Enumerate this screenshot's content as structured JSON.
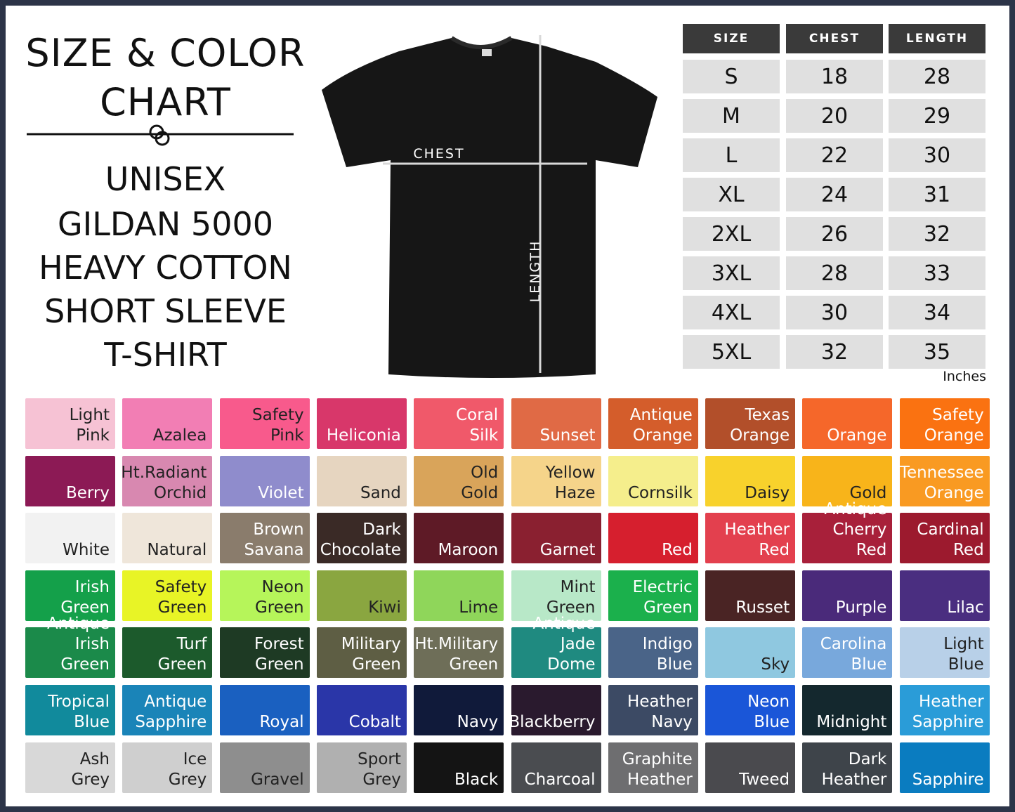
{
  "title": {
    "lines": [
      "SIZE & COLOR",
      "CHART"
    ]
  },
  "subtitle": {
    "lines": [
      "UNISEX",
      "GILDAN 5000",
      "HEAVY COTTON",
      "SHORT SLEEVE",
      "T-SHIRT"
    ]
  },
  "shirt": {
    "chest_label": "CHEST",
    "length_label": "LENGTH"
  },
  "table": {
    "header": [
      "SIZE",
      "CHEST",
      "LENGTH"
    ],
    "rows": [
      [
        "S",
        "18",
        "28"
      ],
      [
        "M",
        "20",
        "29"
      ],
      [
        "L",
        "22",
        "30"
      ],
      [
        "XL",
        "24",
        "31"
      ],
      [
        "2XL",
        "26",
        "32"
      ],
      [
        "3XL",
        "28",
        "33"
      ],
      [
        "4XL",
        "30",
        "34"
      ],
      [
        "5XL",
        "32",
        "35"
      ]
    ],
    "unit": "Inches"
  },
  "swatches": [
    {
      "name": "Light\nPink",
      "color": "#f6c2d4",
      "text_color": "#222"
    },
    {
      "name": "Azalea",
      "color": "#f27eb4",
      "text_color": "#222"
    },
    {
      "name": "Safety\nPink",
      "color": "#f85a8c",
      "text_color": "#222"
    },
    {
      "name": "Heliconia",
      "color": "#d8376a",
      "text_color": "#fff"
    },
    {
      "name": "Coral\nSilk",
      "color": "#f0596a",
      "text_color": "#fff"
    },
    {
      "name": "Sunset",
      "color": "#e06a45",
      "text_color": "#fff"
    },
    {
      "name": "Antique\nOrange",
      "color": "#d45d2b",
      "text_color": "#fff"
    },
    {
      "name": "Texas\nOrange",
      "color": "#b24f2a",
      "text_color": "#fff"
    },
    {
      "name": "Orange",
      "color": "#f5672a",
      "text_color": "#fff"
    },
    {
      "name": "Safety\nOrange",
      "color": "#fa7211",
      "text_color": "#fff"
    },
    {
      "name": "Berry",
      "color": "#8c1a55",
      "text_color": "#fff"
    },
    {
      "name": "Ht.Radiant\nOrchid",
      "color": "#d888b0",
      "text_color": "#222"
    },
    {
      "name": "Violet",
      "color": "#8f8ccc",
      "text_color": "#fff"
    },
    {
      "name": "Sand",
      "color": "#e6d5c0",
      "text_color": "#222"
    },
    {
      "name": "Old\nGold",
      "color": "#d9a45a",
      "text_color": "#222"
    },
    {
      "name": "Yellow\nHaze",
      "color": "#f5d48a",
      "text_color": "#222"
    },
    {
      "name": "Cornsilk",
      "color": "#f5ee8c",
      "text_color": "#222"
    },
    {
      "name": "Daisy",
      "color": "#f8d22c",
      "text_color": "#222"
    },
    {
      "name": "Gold",
      "color": "#f8b41a",
      "text_color": "#222"
    },
    {
      "name": "Tennessee\nOrange",
      "color": "#f99a22",
      "text_color": "#fff"
    },
    {
      "name": "White",
      "color": "#f2f2f2",
      "text_color": "#222"
    },
    {
      "name": "Natural",
      "color": "#efe6da",
      "text_color": "#222"
    },
    {
      "name": "Brown\nSavana",
      "color": "#8a7c6c",
      "text_color": "#fff"
    },
    {
      "name": "Dark\nChocolate",
      "color": "#3a2a26",
      "text_color": "#fff"
    },
    {
      "name": "Maroon",
      "color": "#5e1a26",
      "text_color": "#fff"
    },
    {
      "name": "Garnet",
      "color": "#8a2030",
      "text_color": "#fff"
    },
    {
      "name": "Red",
      "color": "#d61f2e",
      "text_color": "#fff"
    },
    {
      "name": "Heather\nRed",
      "color": "#e3404e",
      "text_color": "#fff"
    },
    {
      "name": "Antique\nCherry Red",
      "color": "#a8203a",
      "text_color": "#fff"
    },
    {
      "name": "Cardinal\nRed",
      "color": "#9c1a2e",
      "text_color": "#fff"
    },
    {
      "name": "Irish\nGreen",
      "color": "#14a04a",
      "text_color": "#fff"
    },
    {
      "name": "Safety\nGreen",
      "color": "#e8f426",
      "text_color": "#222"
    },
    {
      "name": "Neon\nGreen",
      "color": "#b6f55a",
      "text_color": "#222"
    },
    {
      "name": "Kiwi",
      "color": "#8aa640",
      "text_color": "#222"
    },
    {
      "name": "Lime",
      "color": "#8fd65a",
      "text_color": "#222"
    },
    {
      "name": "Mint\nGreen",
      "color": "#b8e8c8",
      "text_color": "#222"
    },
    {
      "name": "Electric\nGreen",
      "color": "#1bb04c",
      "text_color": "#fff"
    },
    {
      "name": "Russet",
      "color": "#4a2424",
      "text_color": "#fff"
    },
    {
      "name": "Purple",
      "color": "#4a2a7a",
      "text_color": "#fff"
    },
    {
      "name": "Lilac",
      "color": "#4a2e80",
      "text_color": "#fff"
    },
    {
      "name": "Antique\nIrish Green",
      "color": "#1b8a4a",
      "text_color": "#fff"
    },
    {
      "name": "Turf\nGreen",
      "color": "#1c5a2c",
      "text_color": "#fff"
    },
    {
      "name": "Forest\nGreen",
      "color": "#1e3a24",
      "text_color": "#fff"
    },
    {
      "name": "Military\nGreen",
      "color": "#5e5e44",
      "text_color": "#fff"
    },
    {
      "name": "Ht.Military\nGreen",
      "color": "#6e6e58",
      "text_color": "#fff"
    },
    {
      "name": "Antique\nJade Dome",
      "color": "#1f8a80",
      "text_color": "#fff"
    },
    {
      "name": "Indigo\nBlue",
      "color": "#4a6488",
      "text_color": "#fff"
    },
    {
      "name": "Sky",
      "color": "#8fc8e0",
      "text_color": "#222"
    },
    {
      "name": "Carolina\nBlue",
      "color": "#78a8dc",
      "text_color": "#fff"
    },
    {
      "name": "Light\nBlue",
      "color": "#b8d0e8",
      "text_color": "#222"
    },
    {
      "name": "Tropical\nBlue",
      "color": "#118a9c",
      "text_color": "#fff"
    },
    {
      "name": "Antique\nSapphire",
      "color": "#1a84b8",
      "text_color": "#fff"
    },
    {
      "name": "Royal",
      "color": "#1a60c0",
      "text_color": "#fff"
    },
    {
      "name": "Cobalt",
      "color": "#2a36a8",
      "text_color": "#fff"
    },
    {
      "name": "Navy",
      "color": "#101a3a",
      "text_color": "#fff"
    },
    {
      "name": "Blackberry",
      "color": "#2a1a2e",
      "text_color": "#fff"
    },
    {
      "name": "Heather\nNavy",
      "color": "#3c4a64",
      "text_color": "#fff"
    },
    {
      "name": "Neon\nBlue",
      "color": "#1a56d8",
      "text_color": "#fff"
    },
    {
      "name": "Midnight",
      "color": "#14282e",
      "text_color": "#fff"
    },
    {
      "name": "Heather\nSapphire",
      "color": "#2a9cd8",
      "text_color": "#fff"
    },
    {
      "name": "Ash\nGrey",
      "color": "#d8d8d8",
      "text_color": "#222"
    },
    {
      "name": "Ice\nGrey",
      "color": "#cfcfcf",
      "text_color": "#222"
    },
    {
      "name": "Gravel",
      "color": "#8e8e8e",
      "text_color": "#222"
    },
    {
      "name": "Sport\nGrey",
      "color": "#b0b0b0",
      "text_color": "#222"
    },
    {
      "name": "Black",
      "color": "#141414",
      "text_color": "#fff"
    },
    {
      "name": "Charcoal",
      "color": "#4a4c50",
      "text_color": "#fff"
    },
    {
      "name": "Graphite\nHeather",
      "color": "#6e6e70",
      "text_color": "#fff"
    },
    {
      "name": "Tweed",
      "color": "#4a4a4e",
      "text_color": "#fff"
    },
    {
      "name": "Dark\nHeather",
      "color": "#3e444a",
      "text_color": "#fff"
    },
    {
      "name": "Sapphire",
      "color": "#0a7cc0",
      "text_color": "#fff"
    }
  ]
}
